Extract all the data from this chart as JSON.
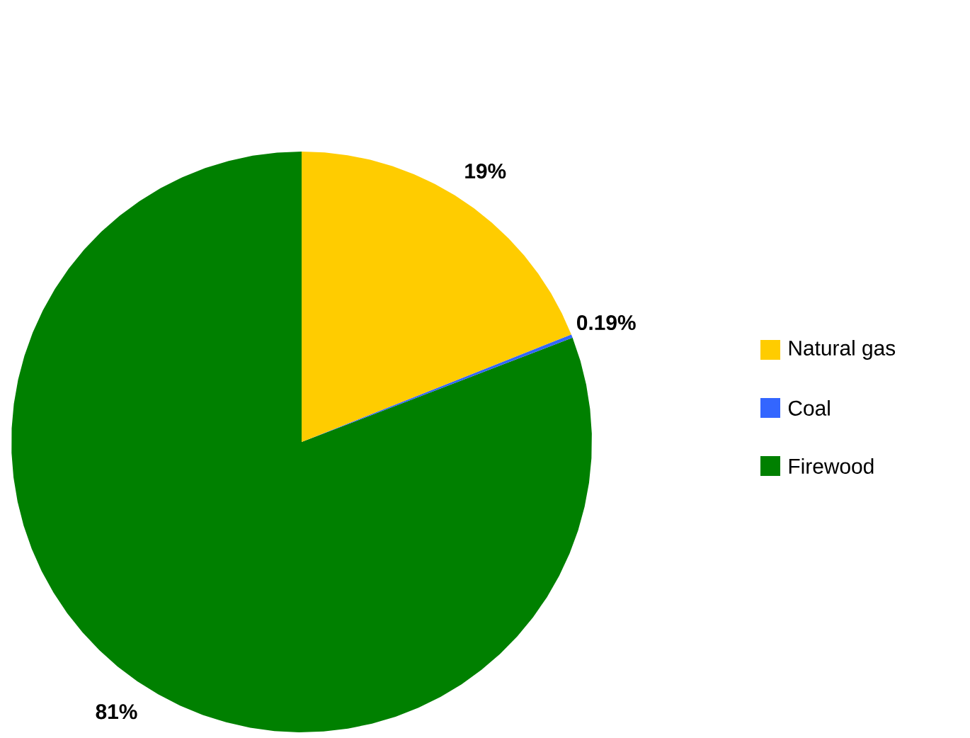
{
  "chart_data": {
    "type": "pie",
    "categories": [
      "Natural gas",
      "Coal",
      "Firewood"
    ],
    "values": [
      19,
      0.19,
      81
    ],
    "value_labels": [
      "19%",
      "0.19%",
      "81%"
    ],
    "colors": [
      "#ffcc00",
      "#3366ff",
      "#008000"
    ],
    "legend": "right"
  }
}
